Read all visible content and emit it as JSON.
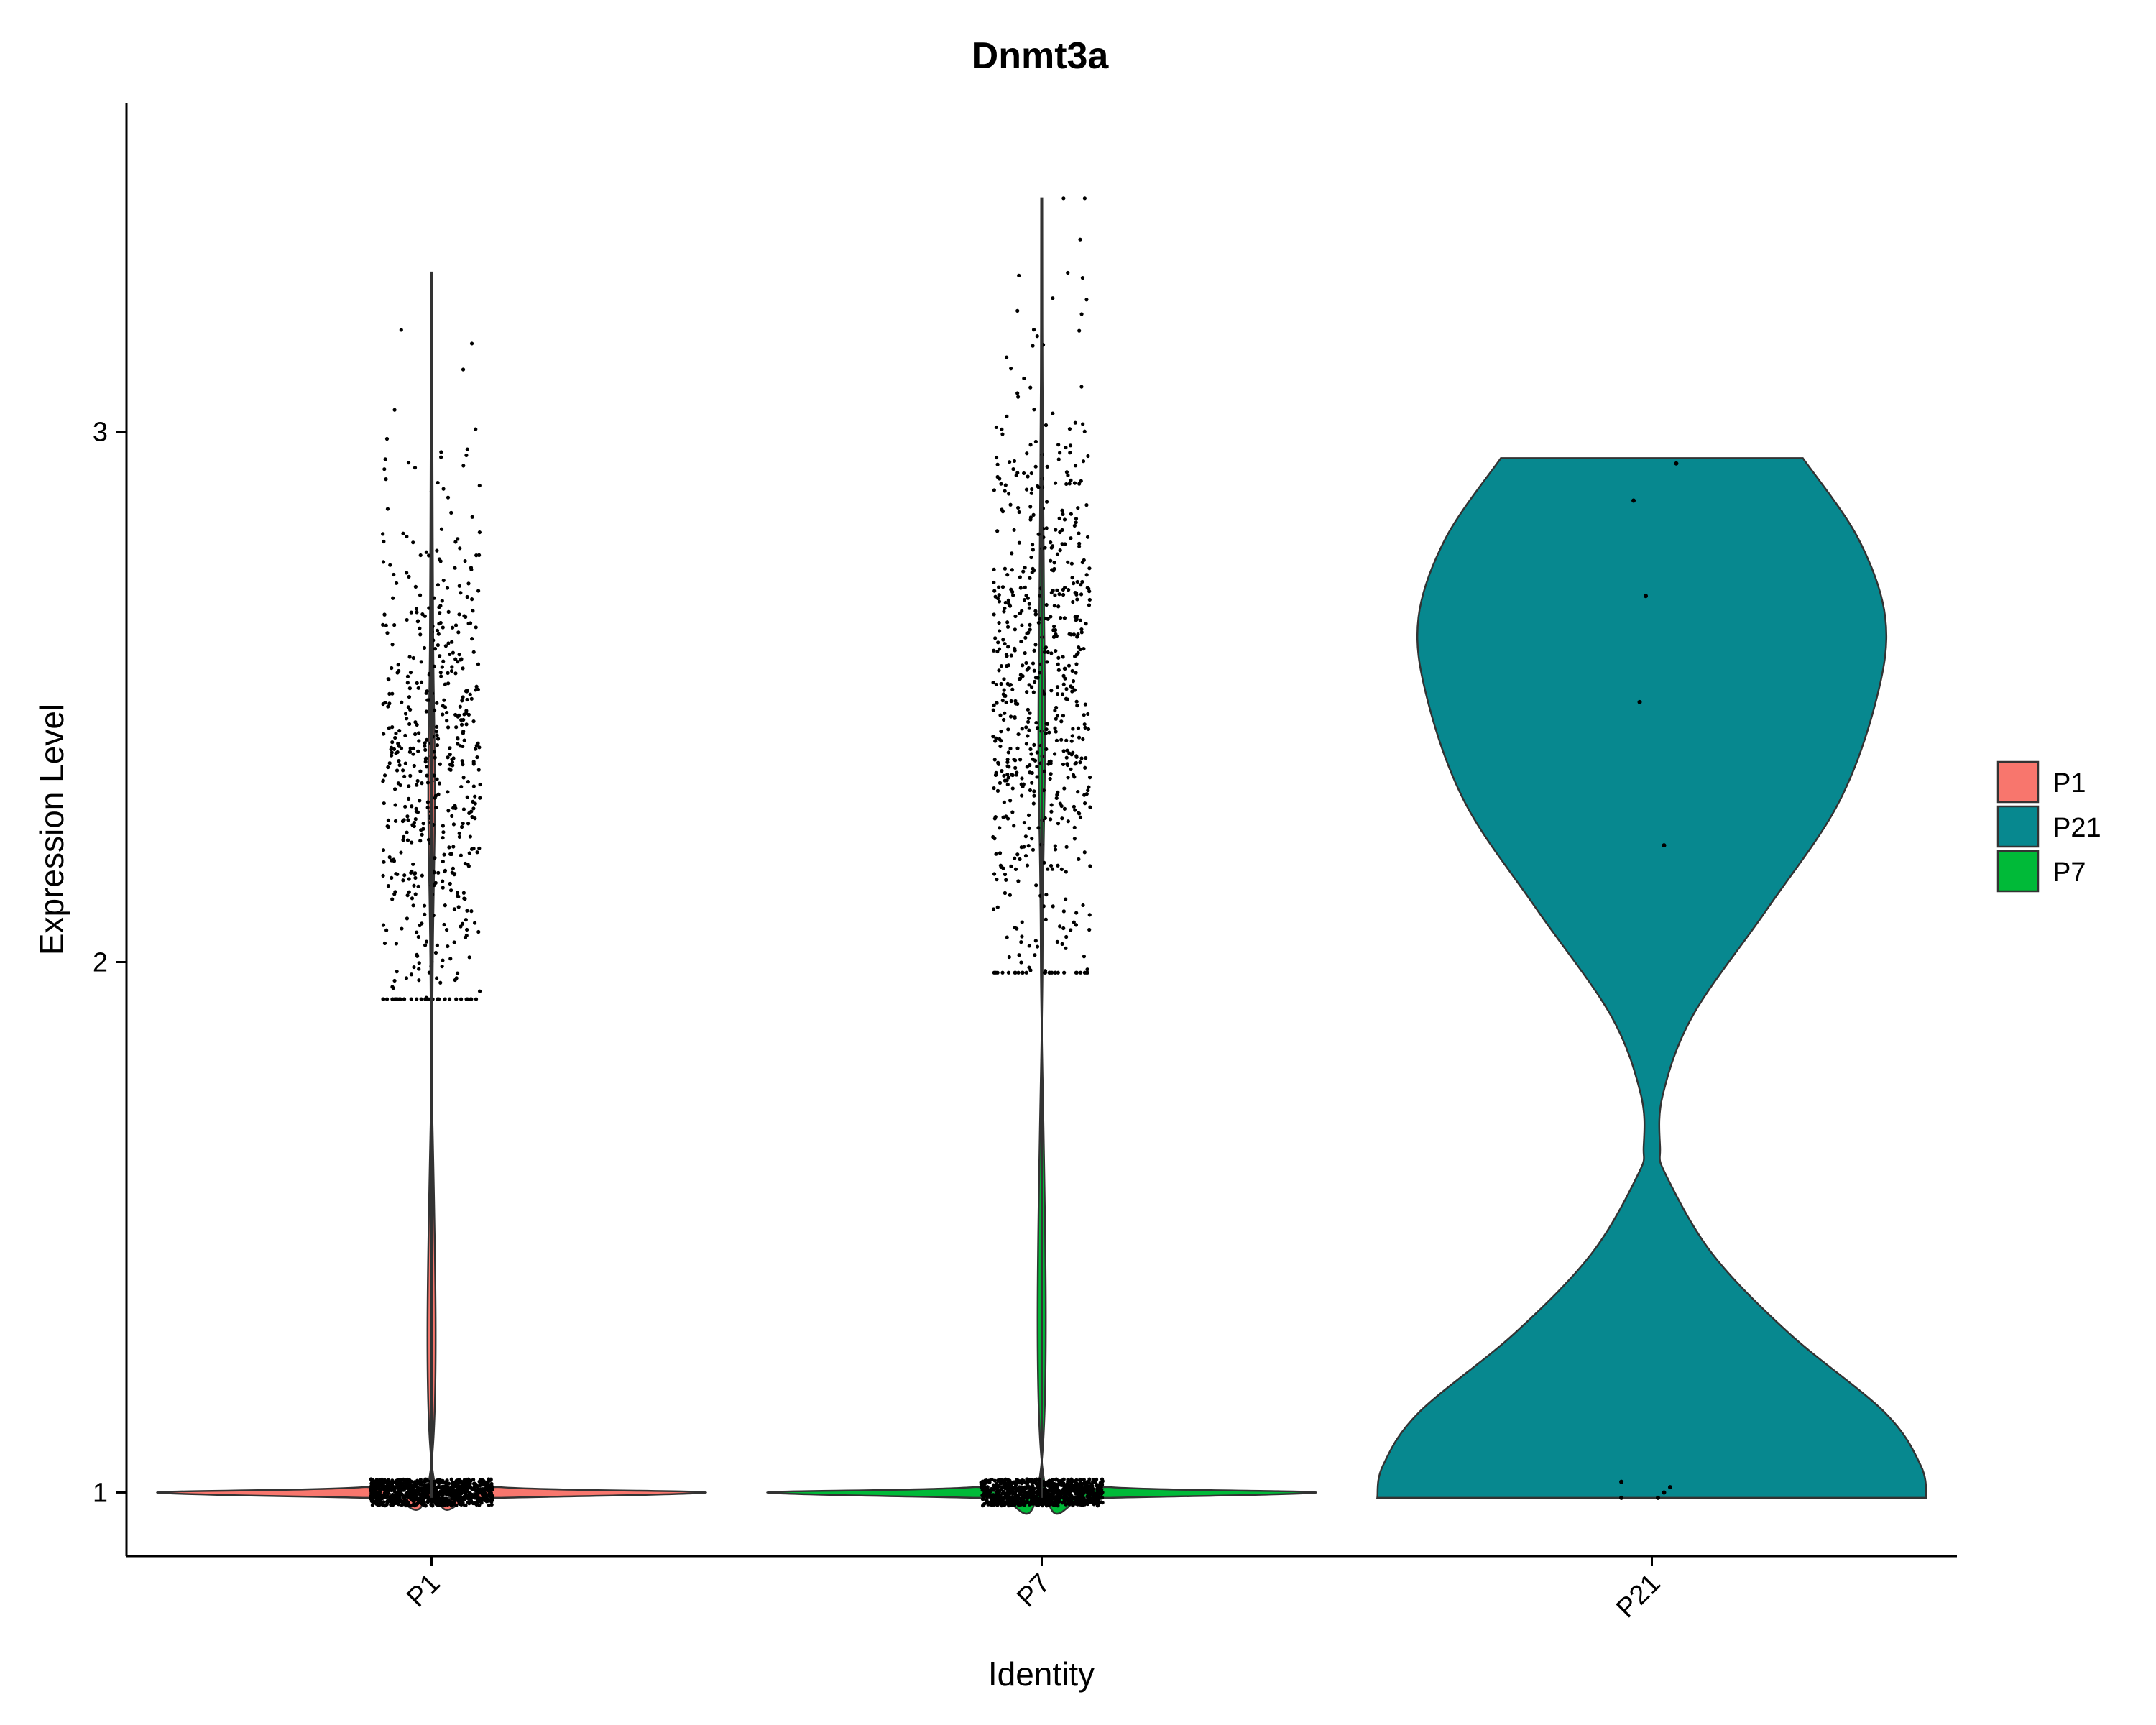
{
  "chart_data": {
    "type": "violin",
    "title": "Dnmt3a",
    "xlabel": "Identity",
    "ylabel": "Expression Level",
    "categories": [
      "P1",
      "P7",
      "P21"
    ],
    "yticks": [
      1,
      2,
      3
    ],
    "ylim": [
      0.88,
      3.62
    ],
    "legend": {
      "position": "right",
      "items": [
        {
          "name": "P1",
          "color": "#F8766D"
        },
        {
          "name": "P21",
          "color": "#07888F"
        },
        {
          "name": "P7",
          "color": "#00BA38"
        }
      ]
    },
    "series": [
      {
        "name": "P1",
        "color": "#F8766D",
        "range": [
          0.99,
          3.3
        ],
        "density": [
          [
            0.99,
            0.25
          ],
          [
            1.0,
            1.0
          ],
          [
            1.01,
            0.25
          ],
          [
            1.04,
            0.004
          ],
          [
            1.9,
            0.003
          ],
          [
            2.3,
            0.012
          ],
          [
            2.6,
            0.006
          ],
          [
            3.0,
            0.003
          ],
          [
            3.3,
            0.002
          ]
        ],
        "points": {
          "low_cluster": {
            "center": 1.0,
            "spread": 0.025,
            "count": 900
          },
          "high_cluster": {
            "center": 2.35,
            "sd": 0.28,
            "min": 1.93,
            "max": 3.3,
            "count": 550
          }
        }
      },
      {
        "name": "P7",
        "color": "#00BA38",
        "range": [
          0.99,
          3.44
        ],
        "density": [
          [
            0.99,
            0.25
          ],
          [
            1.0,
            1.0
          ],
          [
            1.01,
            0.25
          ],
          [
            1.04,
            0.004
          ],
          [
            2.0,
            0.003
          ],
          [
            2.4,
            0.012
          ],
          [
            2.7,
            0.008
          ],
          [
            3.1,
            0.003
          ],
          [
            3.44,
            0.002
          ]
        ],
        "points": {
          "low_cluster": {
            "center": 1.0,
            "spread": 0.025,
            "count": 900
          },
          "high_cluster": {
            "center": 2.5,
            "sd": 0.3,
            "min": 1.98,
            "max": 3.44,
            "count": 650
          }
        }
      },
      {
        "name": "P21",
        "color": "#07888F",
        "range": [
          0.99,
          2.95
        ],
        "density": [
          [
            0.99,
            1.0
          ],
          [
            1.05,
            0.98
          ],
          [
            1.15,
            0.85
          ],
          [
            1.3,
            0.5
          ],
          [
            1.45,
            0.22
          ],
          [
            1.6,
            0.05
          ],
          [
            1.65,
            0.03
          ],
          [
            1.75,
            0.04
          ],
          [
            1.9,
            0.15
          ],
          [
            2.1,
            0.42
          ],
          [
            2.3,
            0.68
          ],
          [
            2.5,
            0.82
          ],
          [
            2.65,
            0.85
          ],
          [
            2.8,
            0.75
          ],
          [
            2.95,
            0.55
          ]
        ],
        "points_values": [
          1.02,
          1.0,
          0.99,
          0.99,
          1.01,
          2.22,
          2.49,
          2.69,
          2.87,
          2.94
        ],
        "points_jitter": [
          -0.05,
          0.02,
          -0.05,
          0.01,
          0.03,
          0.02,
          -0.02,
          -0.01,
          -0.03,
          0.04
        ]
      }
    ]
  }
}
